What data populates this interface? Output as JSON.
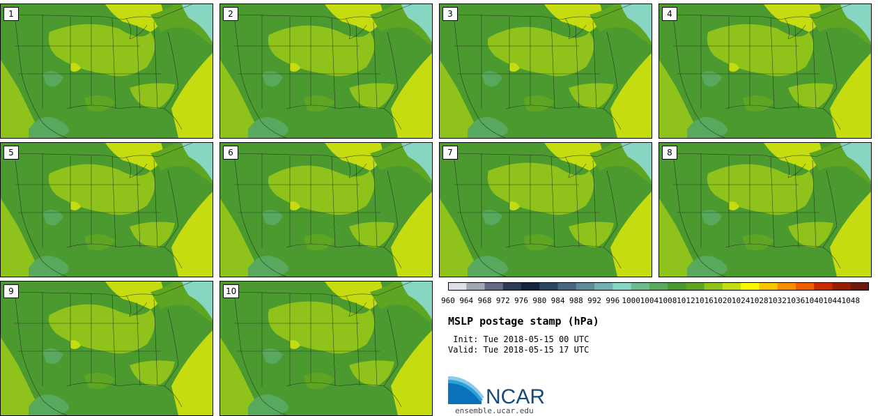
{
  "title": "MSLP postage stamp (hPa)",
  "init_label": "Init: Tue 2018-05-15 00 UTC",
  "valid_label": "Valid: Tue 2018-05-15 17 UTC",
  "logo": {
    "text": "NCAR",
    "url": "ensemble.ucar.edu",
    "icon": "ncar-swoosh-icon"
  },
  "panels": [
    {
      "label": "1"
    },
    {
      "label": "2"
    },
    {
      "label": "3"
    },
    {
      "label": "4"
    },
    {
      "label": "5"
    },
    {
      "label": "6"
    },
    {
      "label": "7"
    },
    {
      "label": "8"
    },
    {
      "label": "9"
    },
    {
      "label": "10"
    }
  ],
  "colorbar": {
    "ticks": [
      "960",
      "964",
      "968",
      "972",
      "976",
      "980",
      "984",
      "988",
      "992",
      "996",
      "1000",
      "1004",
      "1008",
      "1012",
      "1016",
      "1020",
      "1024",
      "1028",
      "1032",
      "1036",
      "1040",
      "1044",
      "1048"
    ],
    "colors": [
      "#dcdfe6",
      "#a3a6b5",
      "#646a82",
      "#2d3a55",
      "#15233f",
      "#2b4663",
      "#46677f",
      "#5d8c98",
      "#73b0b0",
      "#86d6c1",
      "#6dba8e",
      "#58a85d",
      "#4a9a2f",
      "#5fa524",
      "#90c21c",
      "#c5dd10",
      "#f8f800",
      "#f9c300",
      "#f98f00",
      "#ee5c00",
      "#c62c00",
      "#932000",
      "#6e1a0a"
    ]
  }
}
